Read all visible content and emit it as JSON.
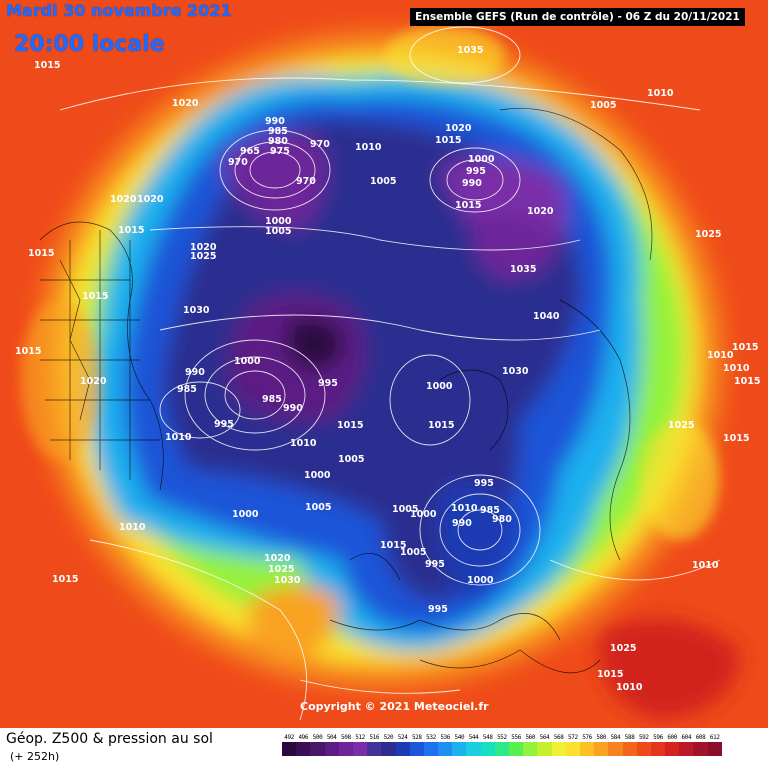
{
  "header": {
    "date": "Mardi 30 novembre 2021",
    "local_time": "20:00 locale",
    "model_run": "Ensemble GEFS  (Run de contrôle)  -  06 Z du 20/11/2021"
  },
  "copyright": "Copyright © 2021 Meteociel.fr",
  "footer": {
    "field_title": "Géop. Z500 & pression au sol",
    "lead_time": "(+ 252h)"
  },
  "colorscale": {
    "labels": [
      "492",
      "496",
      "500",
      "504",
      "508",
      "512",
      "516",
      "520",
      "524",
      "528",
      "532",
      "536",
      "540",
      "544",
      "548",
      "552",
      "556",
      "560",
      "564",
      "568",
      "572",
      "576",
      "580",
      "584",
      "588",
      "592",
      "596",
      "600",
      "604",
      "608",
      "612"
    ],
    "colors": [
      "#2a0a3c",
      "#3b0f55",
      "#4a166a",
      "#5c1c84",
      "#6d2599",
      "#7a2fa8",
      "#433399",
      "#2b2e90",
      "#1f3bb3",
      "#1f55d8",
      "#1d72f0",
      "#1f8ff2",
      "#1fb0ee",
      "#19cfe0",
      "#17e0c0",
      "#2ee88a",
      "#58ef4f",
      "#93f23b",
      "#c6f02f",
      "#eff033",
      "#fbe12d",
      "#fcc127",
      "#f9a224",
      "#f6831f",
      "#f3651b",
      "#ef4b1a",
      "#e5351c",
      "#d2241f",
      "#bb1a26",
      "#a2132a",
      "#8a0e2b"
    ]
  },
  "isobars": [
    {
      "label": "1015"
    },
    {
      "label": "1020"
    },
    {
      "label": "1035"
    },
    {
      "label": "1005"
    },
    {
      "label": "1010"
    },
    {
      "label": "990"
    },
    {
      "label": "985"
    },
    {
      "label": "980"
    },
    {
      "label": "975"
    },
    {
      "label": "970"
    },
    {
      "label": "965"
    },
    {
      "label": "970"
    },
    {
      "label": "970"
    },
    {
      "label": "1010"
    },
    {
      "label": "1020"
    },
    {
      "label": "1015"
    },
    {
      "label": "1000"
    },
    {
      "label": "995"
    },
    {
      "label": "990"
    },
    {
      "label": "1005"
    },
    {
      "label": "1015"
    },
    {
      "label": "1020"
    },
    {
      "label": "1020"
    },
    {
      "label": "1020"
    },
    {
      "label": "1015"
    },
    {
      "label": "1000"
    },
    {
      "label": "1005"
    },
    {
      "label": "1025"
    },
    {
      "label": "1020"
    },
    {
      "label": "1025"
    },
    {
      "label": "1015"
    },
    {
      "label": "1015"
    },
    {
      "label": "1030"
    },
    {
      "label": "1035"
    },
    {
      "label": "1040"
    },
    {
      "label": "1015"
    },
    {
      "label": "1000"
    },
    {
      "label": "990"
    },
    {
      "label": "985"
    },
    {
      "label": "995"
    },
    {
      "label": "985"
    },
    {
      "label": "990"
    },
    {
      "label": "995"
    },
    {
      "label": "1000"
    },
    {
      "label": "1020"
    },
    {
      "label": "1030"
    },
    {
      "label": "1010"
    },
    {
      "label": "1010"
    },
    {
      "label": "1015"
    },
    {
      "label": "1015"
    },
    {
      "label": "1010"
    },
    {
      "label": "1010"
    },
    {
      "label": "1000"
    },
    {
      "label": "1005"
    },
    {
      "label": "1010"
    },
    {
      "label": "1005"
    },
    {
      "label": "1000"
    },
    {
      "label": "1005"
    },
    {
      "label": "1025"
    },
    {
      "label": "1015"
    },
    {
      "label": "1000"
    },
    {
      "label": "1015"
    },
    {
      "label": "1010"
    },
    {
      "label": "995"
    },
    {
      "label": "985"
    },
    {
      "label": "990"
    },
    {
      "label": "980"
    },
    {
      "label": "1005"
    },
    {
      "label": "995"
    },
    {
      "label": "1000"
    },
    {
      "label": "1015"
    },
    {
      "label": "995"
    },
    {
      "label": "1020"
    },
    {
      "label": "1025"
    },
    {
      "label": "1030"
    },
    {
      "label": "1015"
    },
    {
      "label": "1015"
    },
    {
      "label": "1010"
    },
    {
      "label": "1010"
    },
    {
      "label": "1015"
    },
    {
      "label": "1025"
    },
    {
      "label": "1015"
    }
  ]
}
